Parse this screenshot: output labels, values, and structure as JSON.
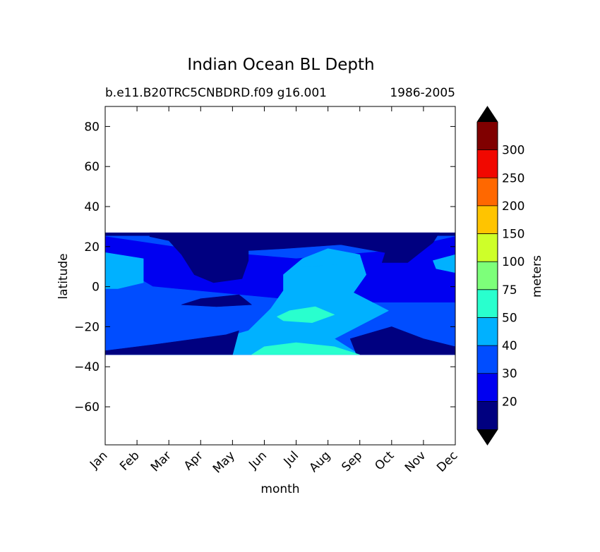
{
  "chart_data": {
    "type": "heatmap",
    "title": "Indian Ocean BL Depth",
    "subtitle_left": "b.e11.B20TRC5CNBDRD.f09 g16.001",
    "subtitle_right": "1986-2005",
    "xlabel": "month",
    "ylabel": "latitude",
    "x_categories": [
      "Jan",
      "Feb",
      "Mar",
      "Apr",
      "May",
      "Jun",
      "Jul",
      "Aug",
      "Sep",
      "Oct",
      "Nov",
      "Dec"
    ],
    "x_range": [
      0,
      11
    ],
    "y_range": [
      -79,
      90
    ],
    "y_ticks": [
      80,
      60,
      40,
      20,
      0,
      -20,
      -40,
      -60
    ],
    "y_tick_labels": [
      "80",
      "60",
      "40",
      "20",
      "0",
      "−20",
      "−40",
      "−60"
    ],
    "data_lat_range": [
      -34,
      27
    ],
    "colorbar": {
      "label": "meters",
      "levels": [
        20,
        30,
        40,
        50,
        75,
        100,
        150,
        200,
        250,
        300
      ],
      "tick_labels": [
        "20",
        "30",
        "40",
        "50",
        "75",
        "100",
        "150",
        "200",
        "250",
        "300"
      ],
      "colors": [
        "#000080",
        "#0000f1",
        "#004dff",
        "#00b1ff",
        "#29ffce",
        "#7dff7a",
        "#ceff29",
        "#ffc400",
        "#ff6800",
        "#f10800",
        "#800000"
      ],
      "extend_low_color": "#000000",
      "extend_high_color": "#000000"
    },
    "regions": [
      {
        "level": 1,
        "points": [
          [
            0,
            25
          ],
          [
            3,
            18
          ],
          [
            6,
            14
          ],
          [
            9,
            18
          ],
          [
            11,
            25
          ],
          [
            11,
            -34
          ],
          [
            0,
            -34
          ]
        ]
      },
      {
        "level": 2,
        "points": [
          [
            0,
            14
          ],
          [
            1.5,
            0
          ],
          [
            5.5,
            -6
          ],
          [
            8,
            -8
          ],
          [
            11,
            -8
          ],
          [
            11,
            -34
          ],
          [
            0,
            -34
          ]
        ]
      },
      {
        "level": 3,
        "points": [
          [
            0.5,
            -32
          ],
          [
            3.2,
            -28
          ],
          [
            4.5,
            -22
          ],
          [
            5.2,
            -11
          ],
          [
            5.6,
            -2
          ],
          [
            5.6,
            6
          ],
          [
            6.2,
            14
          ],
          [
            7,
            19
          ],
          [
            8,
            16
          ],
          [
            8.2,
            6
          ],
          [
            7.8,
            -3
          ],
          [
            8.9,
            -12
          ],
          [
            7.2,
            -26
          ],
          [
            8,
            -34
          ],
          [
            0.5,
            -34
          ]
        ]
      },
      {
        "level": 0,
        "points": [
          [
            0,
            -32
          ],
          [
            1.5,
            -29
          ],
          [
            3.8,
            -24
          ],
          [
            4.2,
            -22
          ],
          [
            4,
            -34
          ],
          [
            0,
            -34
          ]
        ]
      },
      {
        "level": 0,
        "points": [
          [
            7.9,
            -34
          ],
          [
            7.7,
            -26
          ],
          [
            9,
            -20
          ],
          [
            10,
            -26
          ],
          [
            11,
            -30
          ],
          [
            11,
            -34
          ]
        ]
      },
      {
        "level": 3,
        "points": [
          [
            0,
            17
          ],
          [
            1.2,
            14
          ],
          [
            1.2,
            2
          ],
          [
            0.4,
            -1
          ],
          [
            0,
            -1
          ]
        ]
      },
      {
        "level": 3,
        "points": [
          [
            11,
            16
          ],
          [
            10.3,
            13
          ],
          [
            10.4,
            9
          ],
          [
            11,
            7
          ]
        ]
      },
      {
        "level": 0,
        "points": [
          [
            1.4,
            25
          ],
          [
            2,
            23
          ],
          [
            2.4,
            16
          ],
          [
            2.8,
            6
          ],
          [
            3.4,
            2
          ],
          [
            4.3,
            4
          ],
          [
            4.5,
            13
          ],
          [
            4.5,
            18
          ],
          [
            5.6,
            19
          ],
          [
            7.4,
            21
          ],
          [
            8.8,
            17
          ],
          [
            8.7,
            12
          ],
          [
            9.5,
            12
          ],
          [
            9.9,
            17
          ],
          [
            10.3,
            22
          ],
          [
            10.5,
            27
          ],
          [
            1.4,
            27
          ]
        ]
      },
      {
        "level": 0,
        "points": [
          [
            2.4,
            -9
          ],
          [
            3,
            -6
          ],
          [
            4.2,
            -4
          ],
          [
            4.6,
            -9
          ],
          [
            3.5,
            -10
          ]
        ]
      },
      {
        "level": 0,
        "points": [
          [
            0,
            27
          ],
          [
            11,
            27
          ],
          [
            11,
            25.5
          ],
          [
            0,
            25.5
          ]
        ]
      },
      {
        "level": 4,
        "points": [
          [
            4.6,
            -34
          ],
          [
            5,
            -30
          ],
          [
            6,
            -28
          ],
          [
            7.2,
            -30
          ],
          [
            8,
            -34
          ]
        ]
      },
      {
        "level": 4,
        "points": [
          [
            5.4,
            -15
          ],
          [
            5.8,
            -12
          ],
          [
            6.6,
            -10
          ],
          [
            7.2,
            -14
          ],
          [
            6.5,
            -18
          ],
          [
            5.6,
            -17
          ]
        ]
      },
      {
        "level": 3,
        "points": [
          [
            6.1,
            10
          ],
          [
            7.3,
            11
          ],
          [
            7.3,
            8
          ],
          [
            6.1,
            8
          ]
        ]
      }
    ]
  }
}
